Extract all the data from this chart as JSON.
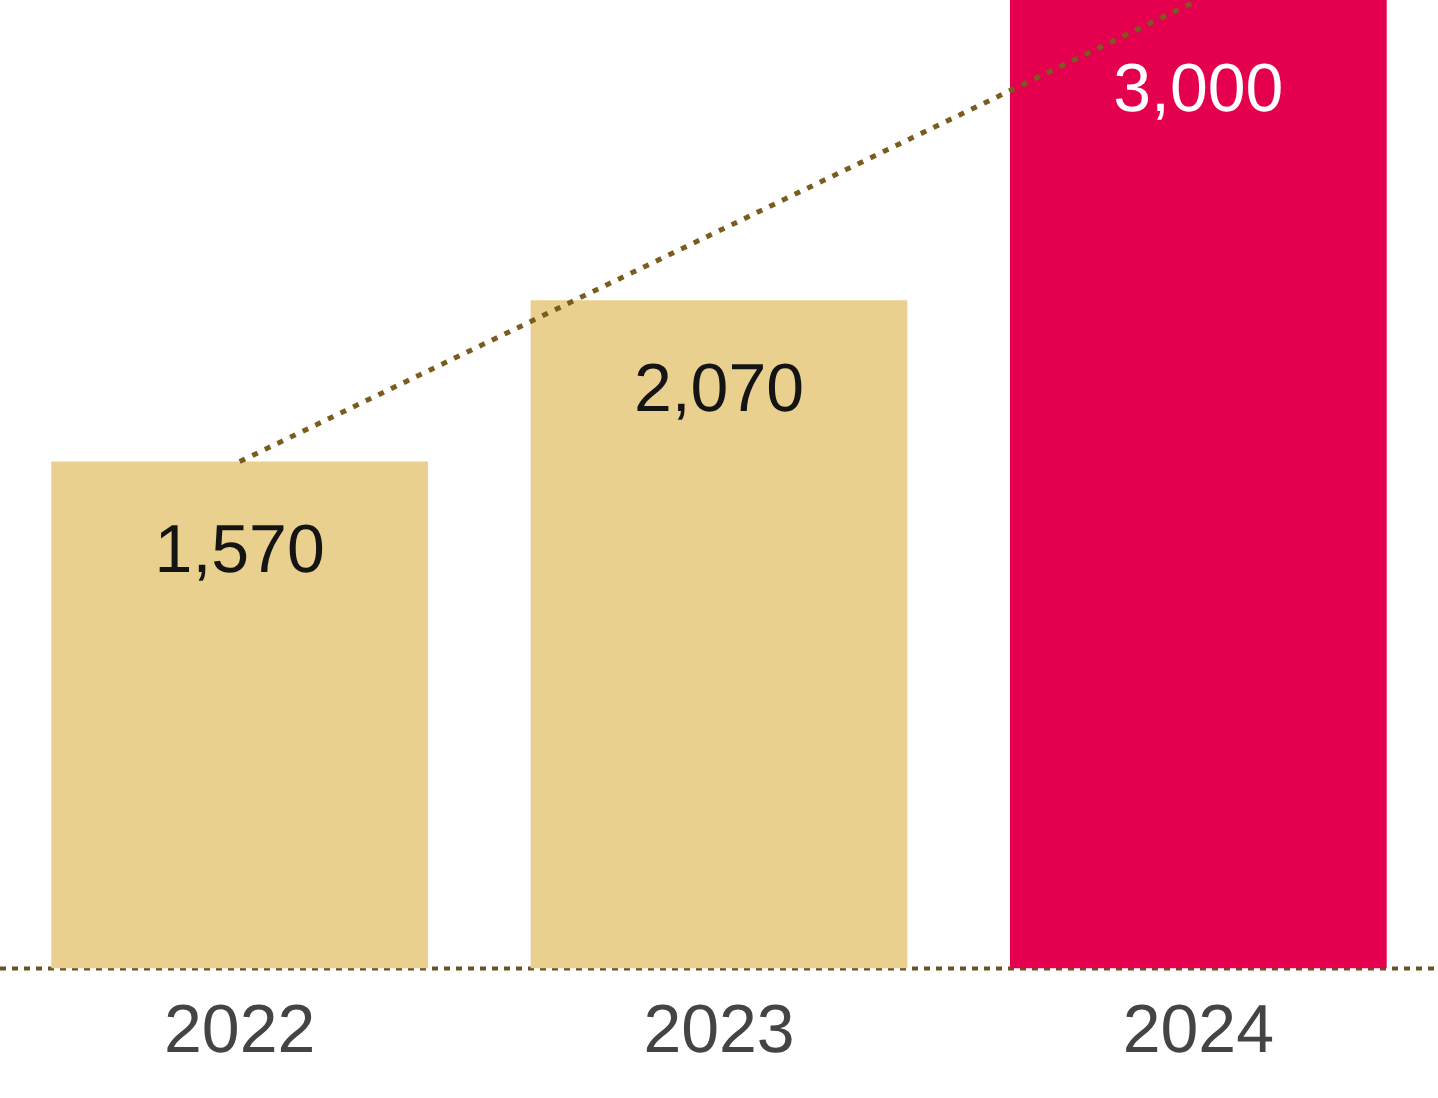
{
  "chart_data": {
    "type": "bar",
    "categories": [
      "2022",
      "2023",
      "2024"
    ],
    "series": [
      {
        "values": [
          1570,
          2070,
          3000
        ],
        "colors": [
          "#e9d08e",
          "#e9d08e",
          "#e4004f"
        ],
        "value_labels": [
          "1,570",
          "2,070",
          "3,000"
        ]
      },
      {
        "type": "line",
        "values": [
          1570,
          null,
          3000
        ],
        "color": "#7a5c1e",
        "line_style": "dotted",
        "marker": "none"
      }
    ],
    "ylim": [
      0,
      3000
    ],
    "tick_labels": "x"
  }
}
